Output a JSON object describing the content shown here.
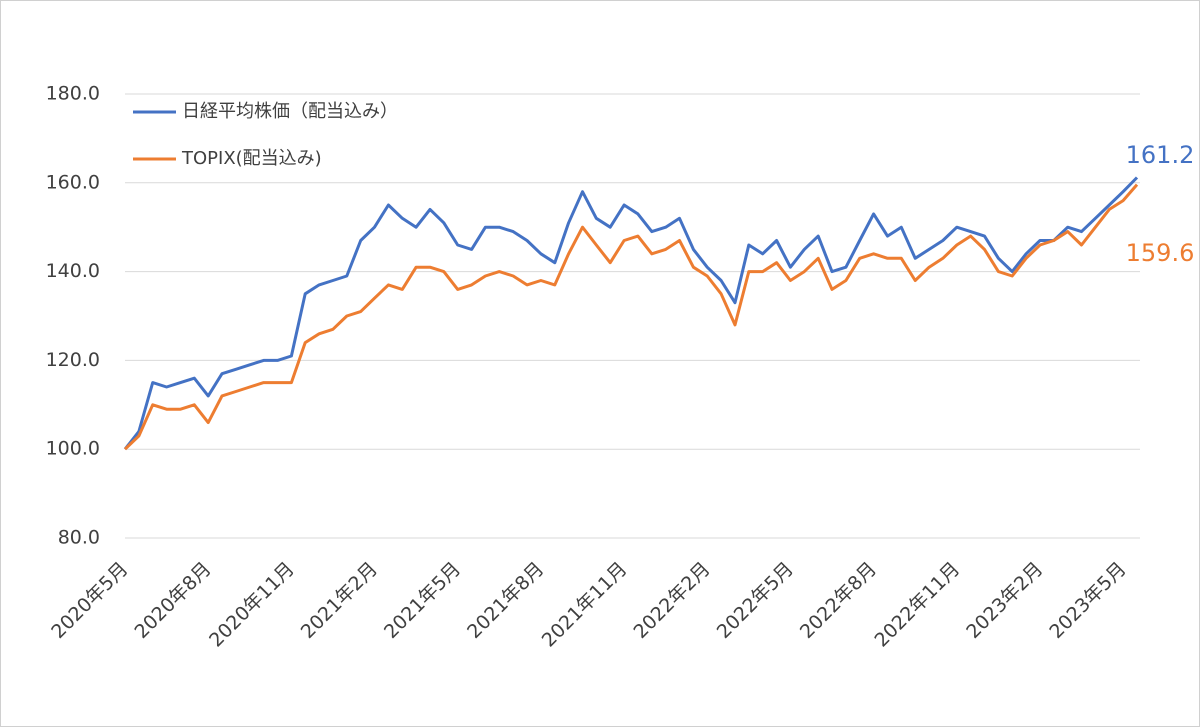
{
  "chart_data": {
    "type": "line",
    "categories": [
      "2020年5月",
      null,
      null,
      null,
      null,
      null,
      "2020年8月",
      null,
      null,
      null,
      null,
      null,
      "2020年11月",
      null,
      null,
      null,
      null,
      null,
      "2021年2月",
      null,
      null,
      null,
      null,
      null,
      "2021年5月",
      null,
      null,
      null,
      null,
      null,
      "2021年8月",
      null,
      null,
      null,
      null,
      null,
      "2021年11月",
      null,
      null,
      null,
      null,
      null,
      "2022年2月",
      null,
      null,
      null,
      null,
      null,
      "2022年5月",
      null,
      null,
      null,
      null,
      null,
      "2022年8月",
      null,
      null,
      null,
      null,
      null,
      "2022年11月",
      null,
      null,
      null,
      null,
      null,
      "2023年2月",
      null,
      null,
      null,
      null,
      null,
      "2023年5月",
      null
    ],
    "series": [
      {
        "name": "日経平均株価（配当込み）",
        "color": "#4472c4",
        "values": [
          100,
          104,
          115,
          114,
          115,
          116,
          112,
          117,
          118,
          119,
          120,
          120,
          121,
          135,
          137,
          138,
          139,
          147,
          150,
          155,
          152,
          150,
          154,
          151,
          146,
          145,
          150,
          150,
          149,
          147,
          144,
          142,
          151,
          158,
          152,
          150,
          155,
          153,
          149,
          150,
          152,
          145,
          141,
          138,
          133,
          146,
          144,
          147,
          141,
          145,
          148,
          140,
          141,
          147,
          153,
          148,
          150,
          143,
          145,
          147,
          150,
          149,
          148,
          143,
          140,
          144,
          147,
          147,
          150,
          149,
          152,
          155,
          158,
          161.2
        ]
      },
      {
        "name": "TOPIX(配当込み)",
        "color": "#ed7d31",
        "values": [
          100,
          103,
          110,
          109,
          109,
          110,
          106,
          112,
          113,
          114,
          115,
          115,
          115,
          124,
          126,
          127,
          130,
          131,
          134,
          137,
          136,
          141,
          141,
          140,
          136,
          137,
          139,
          140,
          139,
          137,
          138,
          137,
          144,
          150,
          146,
          142,
          147,
          148,
          144,
          145,
          147,
          141,
          139,
          135,
          128,
          140,
          140,
          142,
          138,
          140,
          143,
          136,
          138,
          143,
          144,
          143,
          143,
          138,
          141,
          143,
          146,
          148,
          145,
          140,
          139,
          143,
          146,
          147,
          149,
          146,
          150,
          154,
          156,
          159.6
        ]
      }
    ],
    "ylim": [
      80,
      180
    ],
    "yticks": [
      {
        "value": 80,
        "label": "80.0"
      },
      {
        "value": 100,
        "label": "100.0"
      },
      {
        "value": 120,
        "label": "120.0"
      },
      {
        "value": 140,
        "label": "140.0"
      },
      {
        "value": 160,
        "label": "160.0"
      },
      {
        "value": 180,
        "label": "180.0"
      }
    ],
    "grid": true
  }
}
